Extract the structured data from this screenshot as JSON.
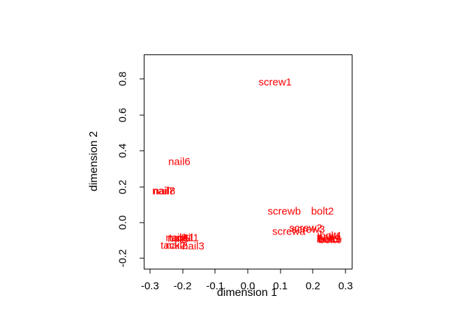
{
  "figure": {
    "background": "#FFFFFF",
    "border_color": "#000000"
  },
  "chart_data": {
    "type": "scatter",
    "title": "",
    "xlabel": "dimension 1",
    "ylabel": "dimension 2",
    "label_color": "#FF0000",
    "axis_color": "#000000",
    "grid": false,
    "legend": null,
    "x_range": [
      -0.3169,
      0.319
    ],
    "y_range": [
      -0.2568,
      0.9339
    ],
    "x_tick_labels": [
      "-0.3",
      "-0.2",
      "-0.1",
      "0.0",
      "0.1",
      "0.2",
      "0.3"
    ],
    "y_tick_labels": [
      "-0.2",
      "0.0",
      "0.2",
      "0.4",
      "0.6",
      "0.8"
    ],
    "points": [
      {
        "label": "screw1",
        "x": 0.084,
        "y": 0.782
      },
      {
        "label": "nail6",
        "x": -0.21,
        "y": 0.339
      },
      {
        "label": "nail7",
        "x": -0.259,
        "y": 0.175
      },
      {
        "label": "nail8",
        "x": -0.256,
        "y": 0.175
      },
      {
        "label": "nail4",
        "x": -0.218,
        "y": -0.086
      },
      {
        "label": "nail5",
        "x": -0.212,
        "y": -0.089
      },
      {
        "label": "tack1",
        "x": -0.203,
        "y": -0.086
      },
      {
        "label": "nail1",
        "x": -0.184,
        "y": -0.086
      },
      {
        "label": "tack2",
        "x": -0.229,
        "y": -0.128
      },
      {
        "label": "nail2",
        "x": -0.218,
        "y": -0.128
      },
      {
        "label": "nail3",
        "x": -0.167,
        "y": -0.132
      },
      {
        "label": "screwb",
        "x": 0.112,
        "y": 0.062
      },
      {
        "label": "bolt2",
        "x": 0.229,
        "y": 0.062
      },
      {
        "label": "screw2",
        "x": 0.178,
        "y": -0.031
      },
      {
        "label": "screw3",
        "x": 0.186,
        "y": -0.039
      },
      {
        "label": "screwa",
        "x": 0.126,
        "y": -0.051
      },
      {
        "label": "bolt1",
        "x": 0.255,
        "y": -0.074
      },
      {
        "label": "bolt4",
        "x": 0.248,
        "y": -0.082
      },
      {
        "label": "bolt3",
        "x": 0.246,
        "y": -0.093
      },
      {
        "label": "bolt5",
        "x": 0.25,
        "y": -0.093
      },
      {
        "label": "bolt6",
        "x": 0.253,
        "y": -0.097
      }
    ]
  }
}
